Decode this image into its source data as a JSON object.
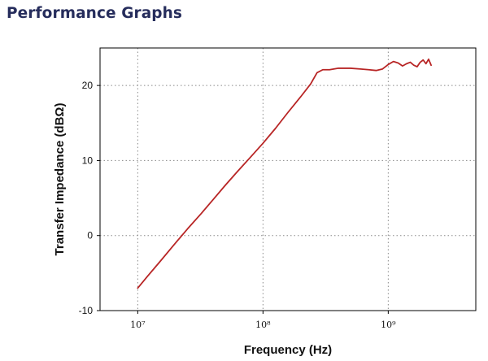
{
  "page": {
    "section_title": "Performance Graphs"
  },
  "colors": {
    "title": "#262d5c",
    "series": "#b82525",
    "grid": "#8a8a8a",
    "frame": "#000000"
  },
  "chart_data": {
    "type": "line",
    "title": "",
    "xlabel": "Frequency (Hz)",
    "ylabel": "Transfer Impedance (dBΩ)",
    "xscale": "log",
    "xlim": [
      5000000,
      5000000000
    ],
    "ylim": [
      -10,
      25
    ],
    "grid": true,
    "legend": "none",
    "x_ticks": [
      {
        "value": 10000000,
        "label": "10⁷"
      },
      {
        "value": 100000000,
        "label": "10⁸"
      },
      {
        "value": 1000000000,
        "label": "10⁹"
      }
    ],
    "y_ticks": [
      {
        "value": -10,
        "label": "-10"
      },
      {
        "value": 0,
        "label": "0"
      },
      {
        "value": 10,
        "label": "10"
      },
      {
        "value": 20,
        "label": "20"
      }
    ],
    "series": [
      {
        "name": "",
        "x": [
          10000000,
          12000000,
          15000000,
          20000000,
          25000000,
          32000000,
          40000000,
          50000000,
          63000000,
          80000000,
          100000000,
          126000000,
          158000000,
          200000000,
          240000000,
          270000000,
          300000000,
          340000000,
          400000000,
          500000000,
          600000000,
          700000000,
          800000000,
          900000000,
          1000000000,
          1100000000,
          1200000000,
          1300000000,
          1400000000,
          1500000000,
          1600000000,
          1700000000,
          1800000000,
          1900000000,
          2000000000,
          2100000000,
          2200000000
        ],
        "y": [
          -7.0,
          -5.4,
          -3.5,
          -1.0,
          0.9,
          2.9,
          4.8,
          6.7,
          8.6,
          10.5,
          12.3,
          14.3,
          16.4,
          18.5,
          20.2,
          21.7,
          22.1,
          22.1,
          22.3,
          22.3,
          22.2,
          22.1,
          22.0,
          22.2,
          22.8,
          23.2,
          23.0,
          22.6,
          22.9,
          23.1,
          22.7,
          22.5,
          23.1,
          23.4,
          22.9,
          23.5,
          22.7
        ]
      }
    ]
  }
}
